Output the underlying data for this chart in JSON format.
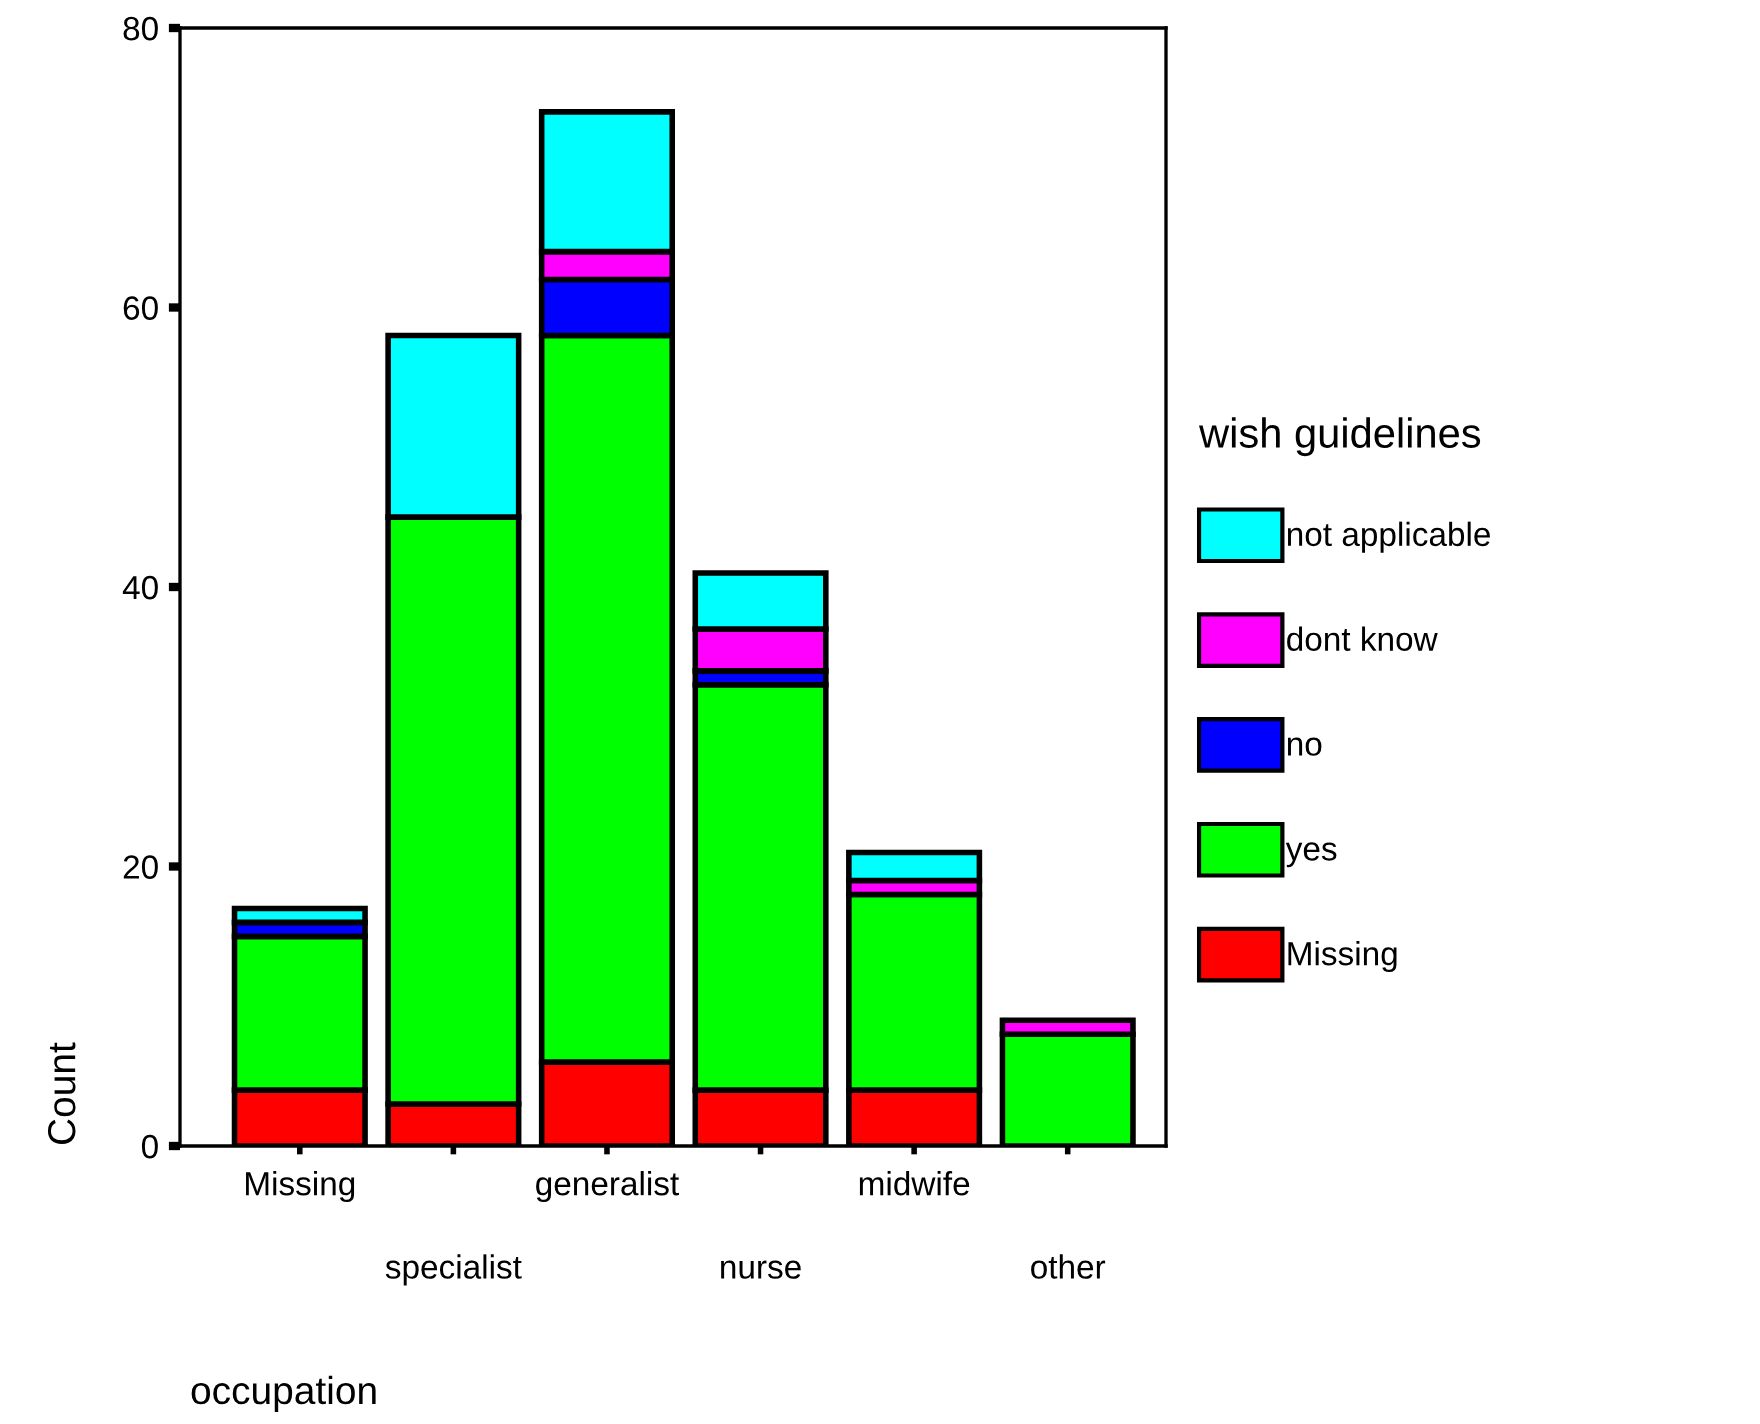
{
  "chart_data": {
    "type": "bar",
    "stacked": true,
    "xlabel": "occupation",
    "ylabel": "Count",
    "legend_title": "wish guidelines",
    "categories": [
      "Missing",
      "specialist",
      "generalist",
      "nurse",
      "midwife",
      "other"
    ],
    "series": [
      {
        "name": "Missing",
        "color": "#ff0000",
        "values": [
          4,
          3,
          6,
          4,
          4,
          null
        ]
      },
      {
        "name": "yes",
        "color": "#00ff00",
        "values": [
          11,
          42,
          52,
          29,
          14,
          8
        ]
      },
      {
        "name": "no",
        "color": "#0000ff",
        "values": [
          1,
          null,
          4,
          1,
          null,
          null
        ]
      },
      {
        "name": "dont know",
        "color": "#ff00ff",
        "values": [
          null,
          null,
          2,
          3,
          1,
          1
        ]
      },
      {
        "name": "not applicable",
        "color": "#00ffff",
        "values": [
          1,
          13,
          10,
          4,
          2,
          null
        ]
      }
    ],
    "ylim": [
      0,
      80
    ],
    "yticks": [
      0,
      20,
      40,
      60,
      80
    ],
    "grid": false,
    "legend": "right"
  }
}
